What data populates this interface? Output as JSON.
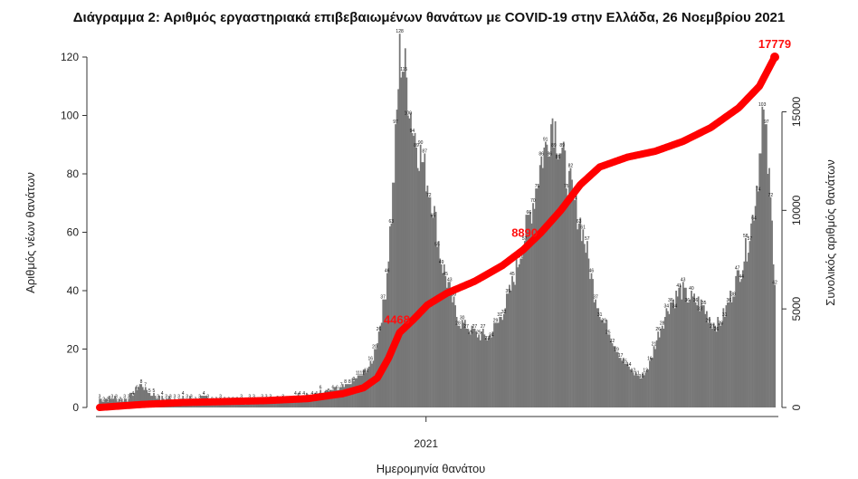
{
  "chart_data": {
    "type": "bar",
    "title": "Διάγραμμα 2: Αριθμός εργαστηριακά επιβεβαιωμένων θανάτων με COVID-19 στην Ελλάδα, 26 Νοεμβρίου 2021",
    "xlabel": "Ημερομηνία θανάτου",
    "ylabel": "Αριθμός νέων θανάτων",
    "y2label": "Συνολικός αριθμός θανάτων",
    "x_tick_labels": [
      "2021"
    ],
    "ylim": [
      0,
      120
    ],
    "yticks": [
      0,
      20,
      40,
      60,
      80,
      100,
      120
    ],
    "y2lim": [
      0,
      17779
    ],
    "y2ticks": [
      0,
      5000,
      10000,
      15000
    ],
    "series": [
      {
        "name": "Νέοι θάνατοι",
        "kind": "bar",
        "color": "#777777",
        "daily_anchors": [
          [
            0,
            3
          ],
          [
            20,
            3
          ],
          [
            30,
            8
          ],
          [
            36,
            5
          ],
          [
            44,
            3
          ],
          [
            60,
            3
          ],
          [
            80,
            3
          ],
          [
            100,
            2
          ],
          [
            130,
            3
          ],
          [
            150,
            4
          ],
          [
            170,
            6
          ],
          [
            180,
            8
          ],
          [
            190,
            12
          ],
          [
            196,
            15
          ],
          [
            200,
            23
          ],
          [
            206,
            40
          ],
          [
            212,
            80
          ],
          [
            216,
            121
          ],
          [
            220,
            115
          ],
          [
            226,
            95
          ],
          [
            232,
            85
          ],
          [
            240,
            70
          ],
          [
            246,
            50
          ],
          [
            252,
            40
          ],
          [
            258,
            30
          ],
          [
            266,
            27
          ],
          [
            272,
            25
          ],
          [
            280,
            24
          ],
          [
            288,
            30
          ],
          [
            296,
            40
          ],
          [
            304,
            55
          ],
          [
            312,
            70
          ],
          [
            318,
            85
          ],
          [
            322,
            90
          ],
          [
            326,
            100
          ],
          [
            330,
            92
          ],
          [
            336,
            80
          ],
          [
            342,
            70
          ],
          [
            348,
            60
          ],
          [
            356,
            40
          ],
          [
            362,
            30
          ],
          [
            366,
            27
          ],
          [
            372,
            20
          ],
          [
            378,
            15
          ],
          [
            384,
            12
          ],
          [
            390,
            10
          ],
          [
            396,
            15
          ],
          [
            402,
            25
          ],
          [
            410,
            35
          ],
          [
            418,
            40
          ],
          [
            426,
            37
          ],
          [
            434,
            35
          ],
          [
            440,
            30
          ],
          [
            446,
            28
          ],
          [
            452,
            35
          ],
          [
            458,
            43
          ],
          [
            462,
            48
          ],
          [
            466,
            55
          ],
          [
            470,
            65
          ],
          [
            474,
            80
          ],
          [
            477,
            102
          ],
          [
            480,
            90
          ],
          [
            483,
            70
          ],
          [
            486,
            45
          ]
        ]
      },
      {
        "name": "Συνολικοί θάνατοι",
        "kind": "line",
        "axis": "right",
        "color": "#ff0000",
        "cumulative_anchors": [
          [
            0,
            0
          ],
          [
            30,
            150
          ],
          [
            60,
            250
          ],
          [
            90,
            300
          ],
          [
            120,
            350
          ],
          [
            150,
            450
          ],
          [
            175,
            700
          ],
          [
            190,
            1000
          ],
          [
            200,
            1500
          ],
          [
            208,
            2500
          ],
          [
            216,
            3800
          ],
          [
            226,
            4468
          ],
          [
            236,
            5200
          ],
          [
            250,
            5800
          ],
          [
            270,
            6400
          ],
          [
            290,
            7200
          ],
          [
            305,
            8000
          ],
          [
            318,
            8890
          ],
          [
            332,
            10000
          ],
          [
            346,
            11300
          ],
          [
            360,
            12200
          ],
          [
            380,
            12700
          ],
          [
            400,
            13000
          ],
          [
            420,
            13500
          ],
          [
            440,
            14200
          ],
          [
            460,
            15200
          ],
          [
            475,
            16300
          ],
          [
            486,
            17779
          ]
        ]
      }
    ],
    "annotations": [
      {
        "text": "4468",
        "x": 226,
        "series": "Συνολικοί θάνατοι"
      },
      {
        "text": "8890",
        "x": 318,
        "series": "Συνολικοί θάνατοι"
      },
      {
        "text": "17779",
        "x": 486,
        "series": "Συνολικοί θάνατοι"
      }
    ],
    "x_tick_day": 235,
    "grid": false,
    "legend": "none"
  }
}
